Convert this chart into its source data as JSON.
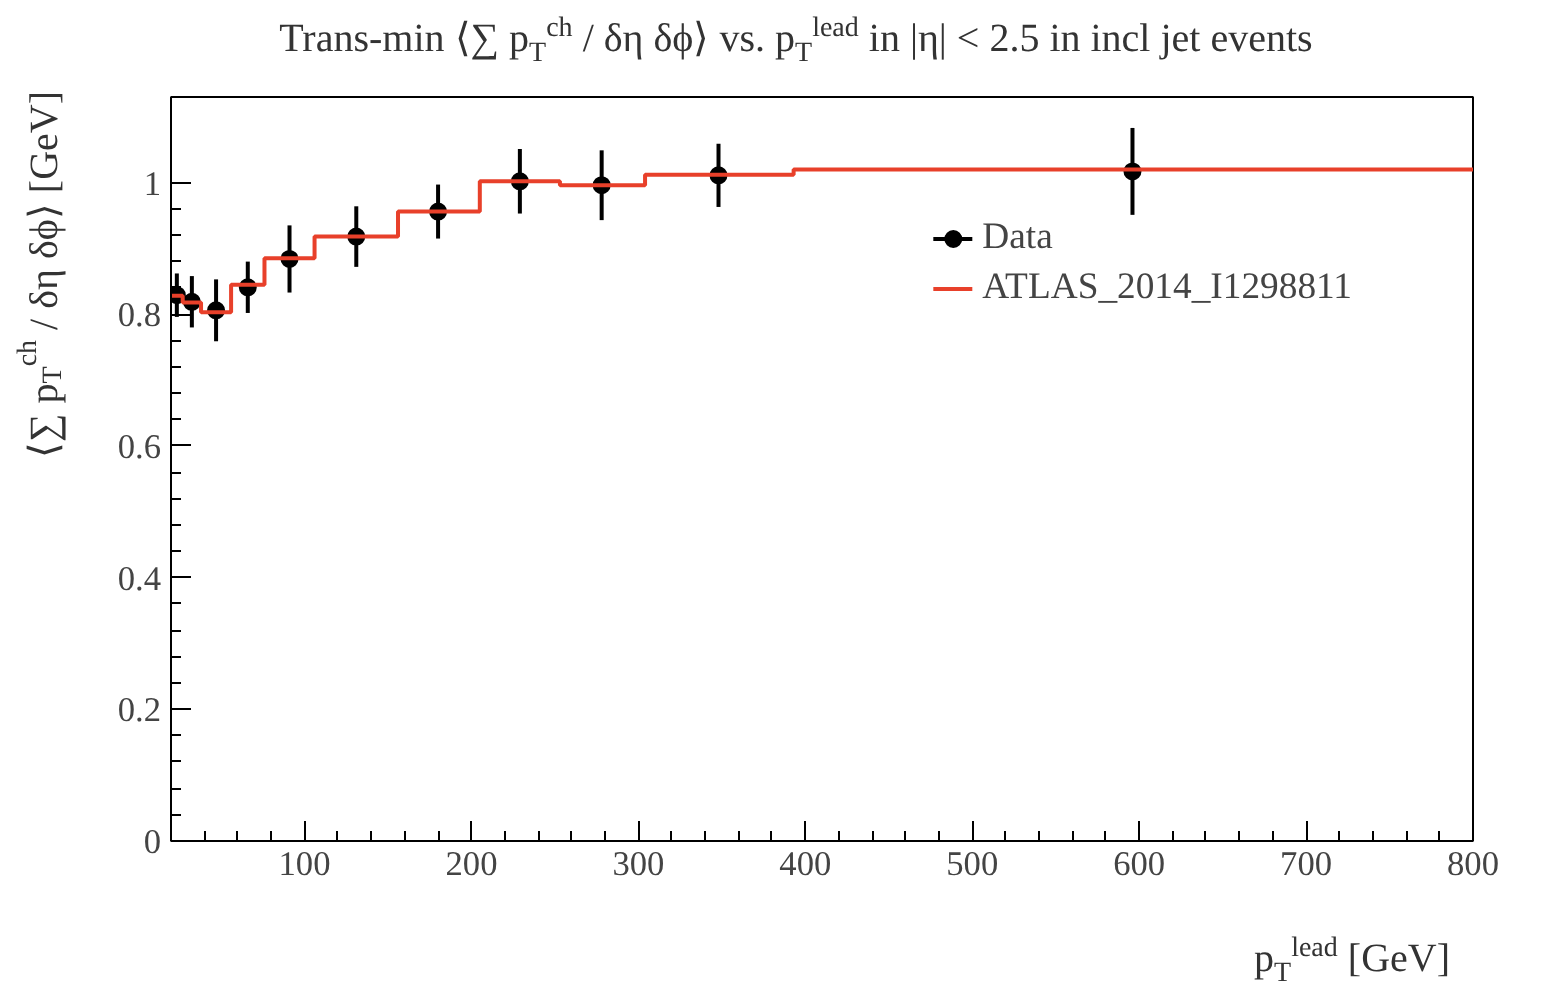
{
  "chart_data": {
    "type": "scatter",
    "title": "Trans-min ⟨∑ p$_{T}$$^{ch}$ / δη δϕ⟩ vs. p$_{T}$$^{lead}$ in |η| < 2.5 in incl jet events",
    "xlabel": "p$_{T}$$^{lead}$ [GeV]",
    "ylabel": "⟨∑ p$_{T}$$^{ch}$ / δη δϕ⟩ [GeV]",
    "xlim": [
      20,
      800
    ],
    "ylim": [
      0,
      1.13
    ],
    "xticks": [
      100,
      200,
      300,
      400,
      500,
      600,
      700,
      800
    ],
    "yticks": [
      0,
      0.2,
      0.4,
      0.6,
      0.8,
      1
    ],
    "grid": false,
    "legend": "top right",
    "series": [
      {
        "name": "Data",
        "marker": "circle",
        "color": "#000000",
        "x": [
          23.5,
          32.5,
          47,
          66,
          91,
          131,
          180,
          229,
          278,
          348,
          596
        ],
        "values": [
          0.829,
          0.819,
          0.806,
          0.841,
          0.884,
          0.918,
          0.956,
          1.002,
          0.996,
          1.011,
          1.017
        ],
        "errors": [
          0.033,
          0.039,
          0.047,
          0.039,
          0.051,
          0.046,
          0.041,
          0.049,
          0.053,
          0.048,
          0.066
        ]
      },
      {
        "name": "ATLAS_2014_I1298811",
        "type": "step",
        "color": "#e8402a",
        "x": [
          20,
          27,
          38,
          56,
          76,
          106,
          156,
          205,
          253,
          304,
          393,
          800
        ],
        "values": [
          0.828,
          0.818,
          0.803,
          0.845,
          0.885,
          0.918,
          0.956,
          1.002,
          0.996,
          1.012,
          1.02,
          1.02
        ]
      }
    ]
  }
}
